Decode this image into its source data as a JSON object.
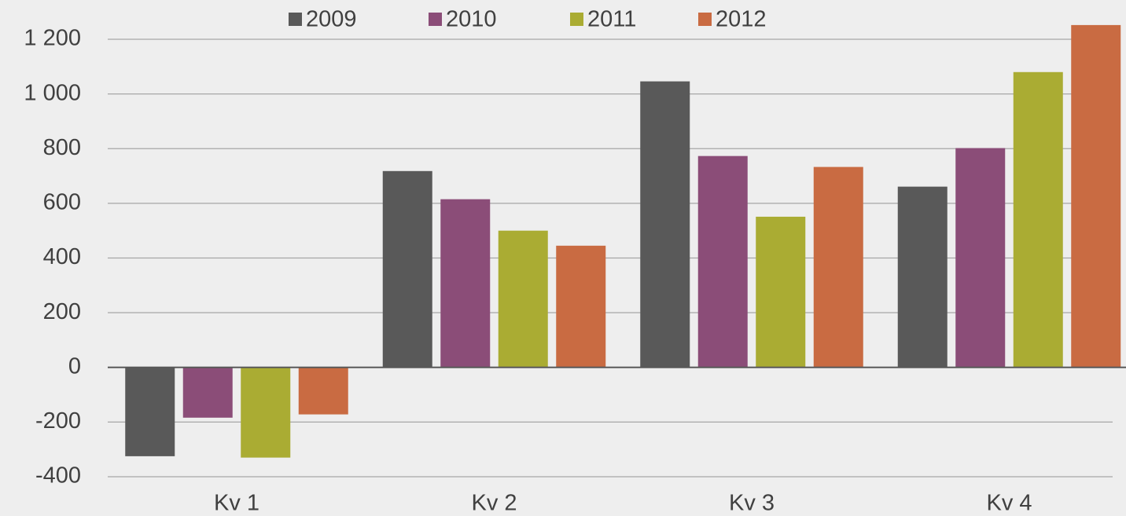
{
  "chart_data": {
    "type": "bar",
    "categories": [
      "Kv 1",
      "Kv 2",
      "Kv 3",
      "Kv 4"
    ],
    "series": [
      {
        "name": "2009",
        "color": "#595959",
        "values": [
          -325,
          718,
          1046,
          661
        ]
      },
      {
        "name": "2010",
        "color": "#8b4d78",
        "values": [
          -184,
          615,
          773,
          802
        ]
      },
      {
        "name": "2011",
        "color": "#aaac33",
        "values": [
          -330,
          500,
          551,
          1080
        ]
      },
      {
        "name": "2012",
        "color": "#c96b42",
        "values": [
          -172,
          445,
          733,
          1252
        ]
      }
    ],
    "ylim": [
      -400,
      1200
    ],
    "yticks": [
      -400,
      -200,
      0,
      200,
      400,
      600,
      800,
      {
        "value": 1000,
        "label": "1 000"
      },
      {
        "value": 1200,
        "label": "1 200"
      }
    ],
    "grid": true,
    "legend": "top"
  }
}
